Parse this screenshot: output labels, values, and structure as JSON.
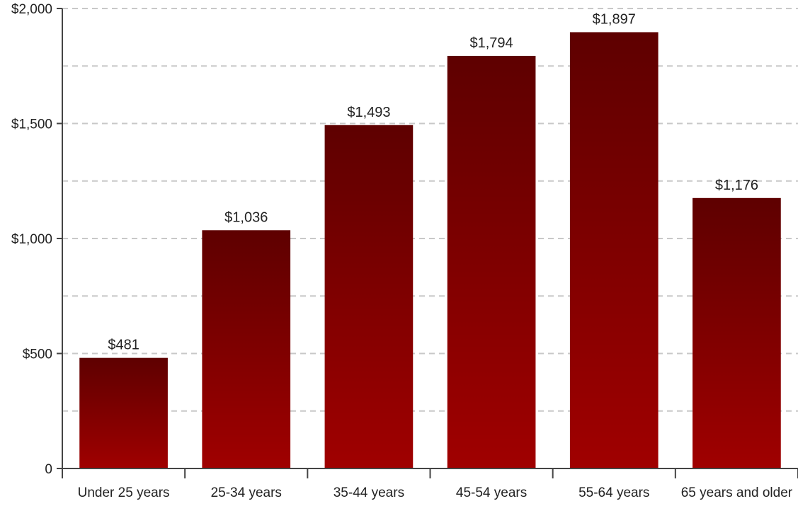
{
  "chart_data": {
    "type": "bar",
    "categories": [
      "Under 25 years",
      "25-34 years",
      "35-44 years",
      "45-54 years",
      "55-64 years",
      "65 years and older"
    ],
    "values": [
      481,
      1036,
      1493,
      1794,
      1897,
      1176
    ],
    "value_labels": [
      "$481",
      "$1,036",
      "$1,493",
      "$1,794",
      "$1,897",
      "$1,176"
    ],
    "title": "",
    "xlabel": "",
    "ylabel": "",
    "ylim": [
      0,
      2000
    ],
    "y_ticks": [
      0,
      500,
      1000,
      1500,
      2000
    ],
    "y_tick_labels": [
      "0",
      "$500",
      "$1,000",
      "$1,500",
      "$2,000"
    ],
    "grid": true,
    "bar_color_top": "#5e0000",
    "bar_color_bottom": "#a00000"
  }
}
